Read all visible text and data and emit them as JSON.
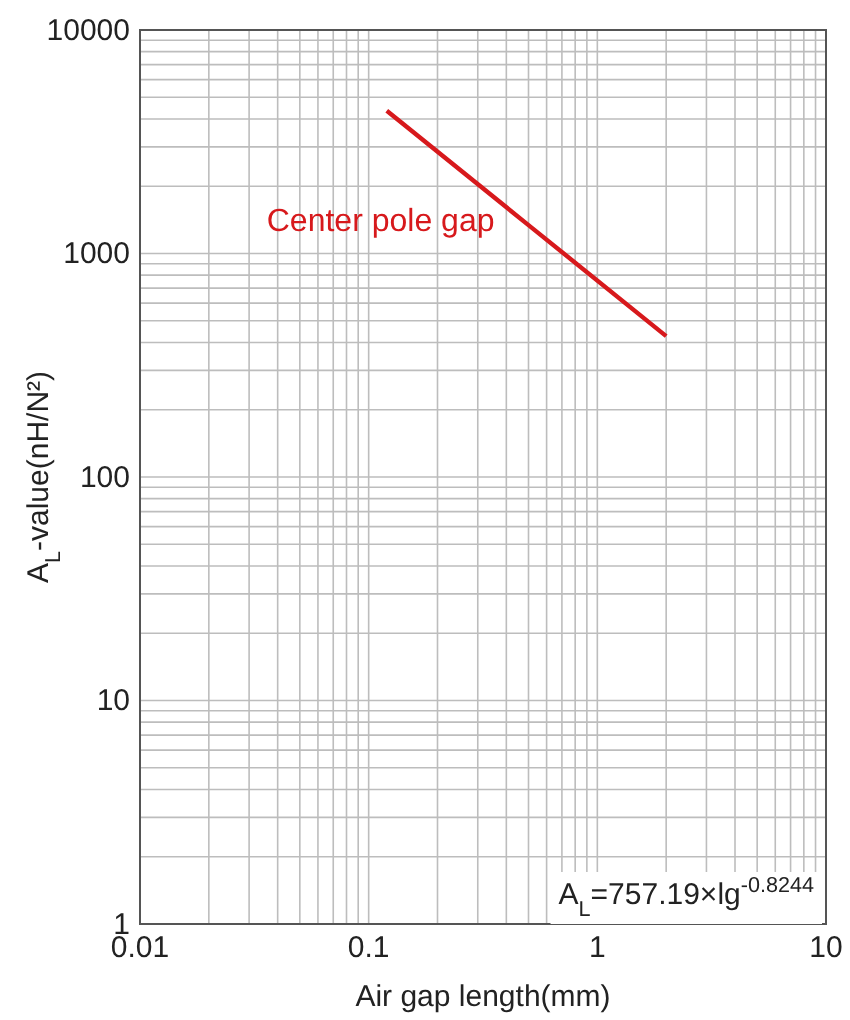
{
  "chart_data": {
    "type": "line",
    "xlabel": "Air gap length(mm)",
    "ylabel": "A$_{L}$-value(nH/N²)",
    "log": "xy",
    "grid": true,
    "xlim": [
      0.01,
      10
    ],
    "xticks": [
      0.01,
      0.1,
      1,
      10
    ],
    "ylim": [
      1,
      10000
    ],
    "yticks": [
      1,
      10,
      100,
      1000,
      10000
    ],
    "x": [
      0.12,
      0.5,
      2
    ],
    "series": [
      {
        "name": "Center pole gap",
        "color": "#d7191c",
        "values": [
          4350,
          1340,
          427
        ]
      }
    ],
    "annotations": [
      "A$_{L}$=757.19×lg$^{-0.8244}$"
    ]
  }
}
